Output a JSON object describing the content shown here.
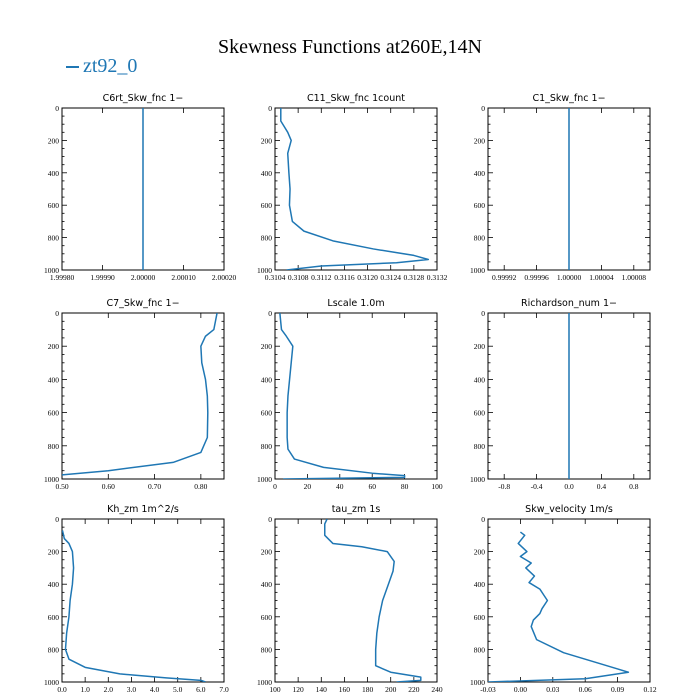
{
  "title": "Skewness Functions at260E,14N",
  "legend": {
    "label": "zt92_0",
    "color": "#1f77b4"
  },
  "series_color": "#1f77b4",
  "chart_data": [
    {
      "type": "line",
      "title": "C6rt_Skw_fnc",
      "unit": "1−",
      "xlim": [
        1.9998,
        2.0002
      ],
      "ylim": [
        0,
        1000
      ],
      "xticks": [
        "1.99980",
        "1.99990",
        "2.00000",
        "2.00010",
        "2.00020"
      ],
      "xtick_values": [
        1.9998,
        1.9999,
        2.0,
        2.0001,
        2.0002
      ],
      "yticks": [
        0,
        200,
        400,
        600,
        800,
        1000
      ],
      "x": [
        2.0,
        2.0
      ],
      "y": [
        0,
        1000
      ]
    },
    {
      "type": "line",
      "title": "C11_Skw_fnc",
      "unit": "1count",
      "xlim": [
        0.3104,
        0.3132
      ],
      "ylim": [
        0,
        1000
      ],
      "xticks": [
        "0.3104",
        "0.3108",
        "0.3112",
        "0.3116",
        "0.3120",
        "0.3124",
        "0.3128",
        "0.3132"
      ],
      "xtick_values": [
        0.3104,
        0.3108,
        0.3112,
        0.3116,
        0.312,
        0.3124,
        0.3128,
        0.3132
      ],
      "yticks": [
        0,
        200,
        400,
        600,
        800,
        1000
      ],
      "x": [
        0.3105,
        0.3105,
        0.31062,
        0.31068,
        0.31062,
        0.31064,
        0.31066,
        0.31065,
        0.3107,
        0.3109,
        0.3114,
        0.3121,
        0.3128,
        0.31305,
        0.3125,
        0.3112,
        0.3106
      ],
      "y": [
        0,
        80,
        150,
        200,
        280,
        400,
        500,
        600,
        700,
        760,
        820,
        870,
        910,
        935,
        955,
        975,
        1000
      ]
    },
    {
      "type": "line",
      "title": "C1_Skw_fnc",
      "unit": "1−",
      "xlim": [
        0.9999,
        1.0001
      ],
      "ylim": [
        0,
        1000
      ],
      "xticks": [
        "0.99992",
        "0.99996",
        "1.00000",
        "1.00004",
        "1.00008"
      ],
      "xtick_values": [
        0.99992,
        0.99996,
        1.0,
        1.00004,
        1.00008
      ],
      "yticks": [
        0,
        200,
        400,
        600,
        800,
        1000
      ],
      "x": [
        1.0,
        1.0
      ],
      "y": [
        0,
        1000
      ]
    },
    {
      "type": "line",
      "title": "C7_Skw_fnc",
      "unit": "1−",
      "xlim": [
        0.5,
        0.85
      ],
      "ylim": [
        0,
        1000
      ],
      "xticks": [
        "0.50",
        "0.60",
        "0.70",
        "0.80"
      ],
      "xtick_values": [
        0.5,
        0.6,
        0.7,
        0.8
      ],
      "yticks": [
        0,
        200,
        400,
        600,
        800,
        1000
      ],
      "x": [
        0.835,
        0.828,
        0.81,
        0.8,
        0.802,
        0.81,
        0.814,
        0.815,
        0.814,
        0.8,
        0.74,
        0.6,
        0.5
      ],
      "y": [
        0,
        100,
        140,
        200,
        300,
        400,
        500,
        600,
        750,
        840,
        900,
        950,
        975
      ]
    },
    {
      "type": "line",
      "title": "Lscale",
      "unit": "1.0m",
      "xlim": [
        0,
        100
      ],
      "ylim": [
        0,
        1000
      ],
      "xticks": [
        "0",
        "20",
        "40",
        "60",
        "80",
        "100"
      ],
      "xtick_values": [
        0,
        20,
        40,
        60,
        80,
        100
      ],
      "yticks": [
        0,
        200,
        400,
        600,
        800,
        1000
      ],
      "x": [
        3,
        4,
        7,
        11,
        10,
        9,
        8,
        7.5,
        7.5,
        8,
        12,
        30,
        60,
        80,
        80,
        5
      ],
      "y": [
        0,
        100,
        140,
        200,
        300,
        400,
        500,
        600,
        750,
        820,
        880,
        930,
        965,
        980,
        990,
        1000
      ]
    },
    {
      "type": "line",
      "title": "Richardson_num",
      "unit": "1−",
      "xlim": [
        -1,
        1
      ],
      "ylim": [
        0,
        1000
      ],
      "xticks": [
        "-0.8",
        "-0.4",
        "0.0",
        "0.4",
        "0.8"
      ],
      "xtick_values": [
        -0.8,
        -0.4,
        0.0,
        0.4,
        0.8
      ],
      "yticks": [
        0,
        200,
        400,
        600,
        800,
        1000
      ],
      "x": [
        0.0,
        0.0
      ],
      "y": [
        0,
        1000
      ]
    },
    {
      "type": "line",
      "title": "Kh_zm",
      "unit": "1m^2/s",
      "xlim": [
        0,
        7
      ],
      "ylim": [
        0,
        1000
      ],
      "xticks": [
        "0.0",
        "1.0",
        "2.0",
        "3.0",
        "4.0",
        "5.0",
        "6.0",
        "7.0"
      ],
      "xtick_values": [
        0,
        1,
        2,
        3,
        4,
        5,
        6,
        7
      ],
      "yticks": [
        0,
        200,
        400,
        600,
        800,
        1000
      ],
      "x": [
        0.02,
        0.1,
        0.3,
        0.45,
        0.5,
        0.45,
        0.35,
        0.3,
        0.2,
        0.15,
        0.3,
        1.0,
        2.5,
        4.5,
        6.0,
        6.2
      ],
      "y": [
        70,
        120,
        150,
        200,
        300,
        400,
        500,
        600,
        700,
        800,
        860,
        910,
        950,
        975,
        990,
        1000
      ]
    },
    {
      "type": "line",
      "title": "tau_zm",
      "unit": "1s",
      "xlim": [
        100,
        240
      ],
      "ylim": [
        0,
        1000
      ],
      "xticks": [
        "100",
        "120",
        "140",
        "160",
        "180",
        "200",
        "220",
        "240"
      ],
      "xtick_values": [
        100,
        120,
        140,
        160,
        180,
        200,
        220,
        240
      ],
      "yticks": [
        0,
        200,
        400,
        600,
        800,
        1000
      ],
      "x": [
        145,
        143,
        143,
        150,
        175,
        197,
        203,
        202,
        198,
        193,
        190,
        188,
        187,
        187,
        200,
        226,
        226,
        205
      ],
      "y": [
        0,
        30,
        100,
        150,
        170,
        200,
        260,
        320,
        400,
        500,
        600,
        700,
        800,
        900,
        940,
        970,
        990,
        1000
      ]
    },
    {
      "type": "line",
      "title": "Skw_velocity",
      "unit": "1m/s",
      "xlim": [
        -0.03,
        0.12
      ],
      "ylim": [
        0,
        1000
      ],
      "xticks": [
        "-0.03",
        "0.00",
        "0.03",
        "0.06",
        "0.09",
        "0.12"
      ],
      "xtick_values": [
        -0.03,
        0.0,
        0.03,
        0.06,
        0.09,
        0.12
      ],
      "yticks": [
        0,
        200,
        400,
        600,
        800,
        1000
      ],
      "x": [
        0.0,
        0.004,
        -0.002,
        0.006,
        0.0,
        0.01,
        0.005,
        0.013,
        0.008,
        0.018,
        0.022,
        0.025,
        0.02,
        0.018,
        0.012,
        0.01,
        0.015,
        0.04,
        0.07,
        0.09,
        0.1,
        0.06,
        -0.03
      ],
      "y": [
        80,
        100,
        150,
        200,
        230,
        270,
        300,
        350,
        390,
        430,
        470,
        500,
        550,
        580,
        620,
        660,
        740,
        820,
        880,
        920,
        940,
        980,
        1000
      ]
    }
  ]
}
